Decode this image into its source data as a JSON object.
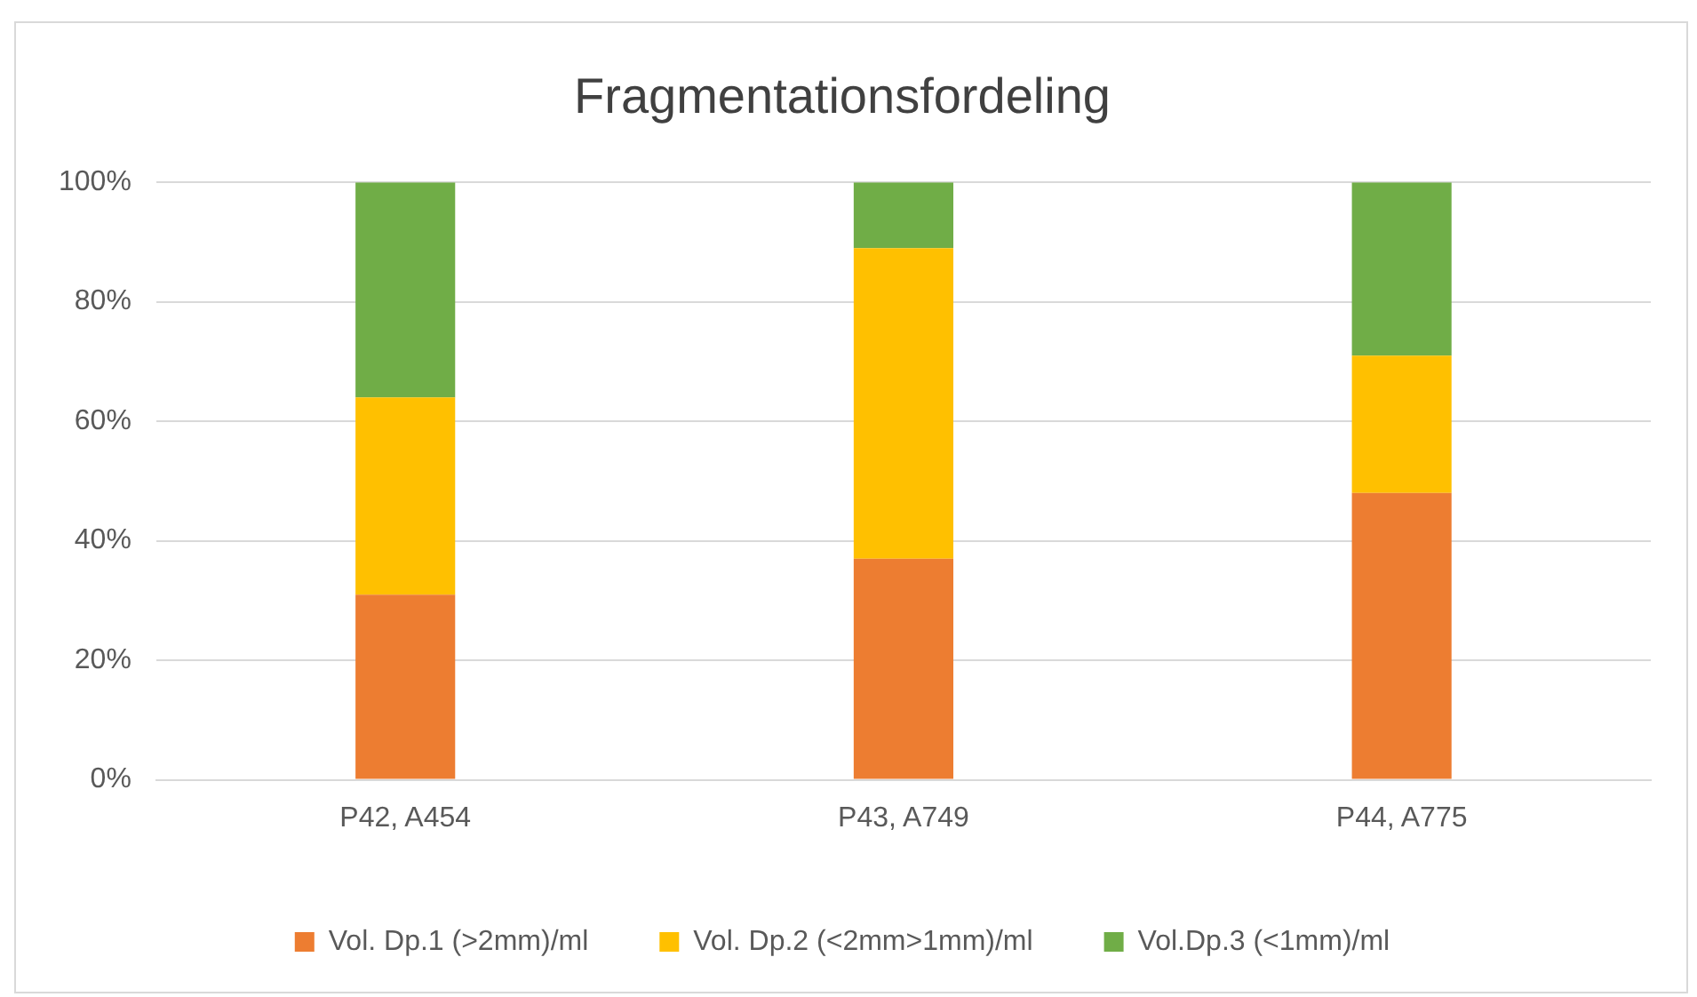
{
  "chart_data": {
    "type": "bar",
    "title": "Fragmentationsfordeling",
    "stacked": true,
    "categories": [
      "P42, A454",
      "P43, A749",
      "P44, A775"
    ],
    "series": [
      {
        "name": "Vol. Dp.1 (>2mm)/ml",
        "color": "#ed7d31",
        "values": [
          31,
          37,
          48
        ]
      },
      {
        "name": "Vol. Dp.2 (<2mm>1mm)/ml",
        "color": "#ffc000",
        "values": [
          33,
          52,
          23
        ]
      },
      {
        "name": "Vol.Dp.3 (<1mm)/ml",
        "color": "#70ad47",
        "values": [
          36,
          11,
          29
        ]
      }
    ],
    "ylim": [
      0,
      100
    ],
    "yticks": [
      {
        "value": 0,
        "label": "0%"
      },
      {
        "value": 20,
        "label": "20%"
      },
      {
        "value": 40,
        "label": "40%"
      },
      {
        "value": 60,
        "label": "60%"
      },
      {
        "value": 80,
        "label": "80%"
      },
      {
        "value": 100,
        "label": "100%"
      }
    ],
    "grid": "y",
    "legend": "bottom"
  }
}
